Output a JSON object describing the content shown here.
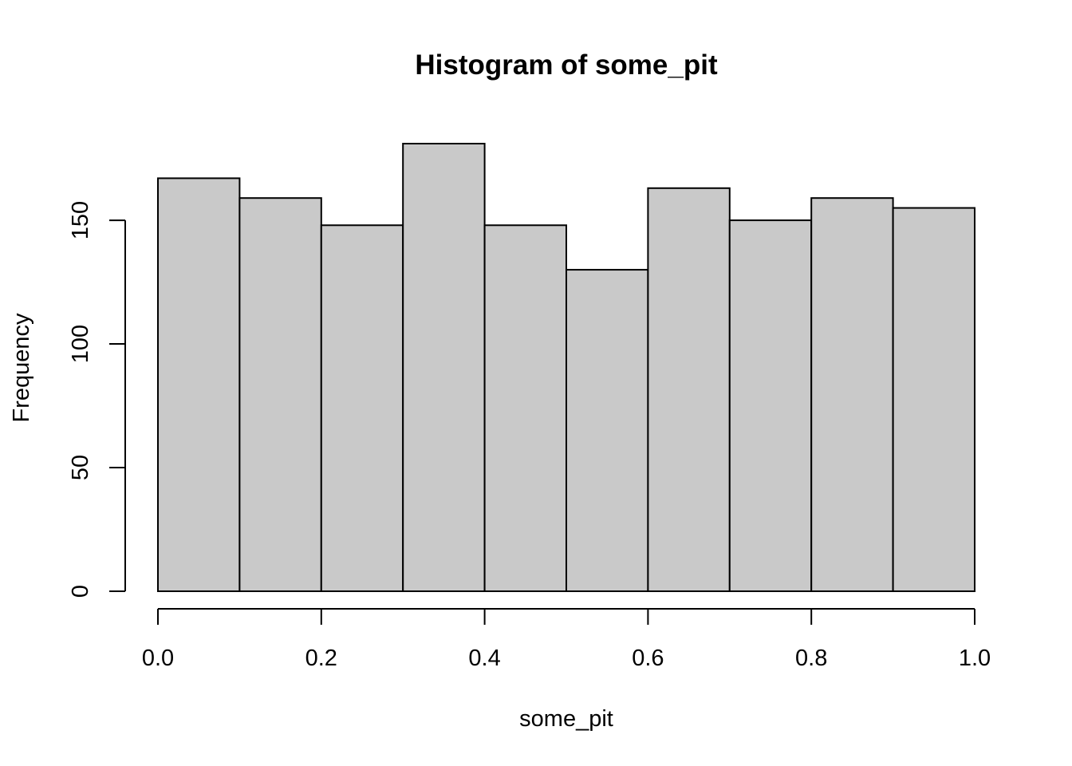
{
  "chart_data": {
    "type": "bar",
    "title": "Histogram of some_pit",
    "xlabel": "some_pit",
    "ylabel": "Frequency",
    "bins": [
      {
        "start": 0.0,
        "end": 0.1,
        "count": 167
      },
      {
        "start": 0.1,
        "end": 0.2,
        "count": 159
      },
      {
        "start": 0.2,
        "end": 0.3,
        "count": 148
      },
      {
        "start": 0.3,
        "end": 0.4,
        "count": 181
      },
      {
        "start": 0.4,
        "end": 0.5,
        "count": 148
      },
      {
        "start": 0.5,
        "end": 0.6,
        "count": 130
      },
      {
        "start": 0.6,
        "end": 0.7,
        "count": 163
      },
      {
        "start": 0.7,
        "end": 0.8,
        "count": 150
      },
      {
        "start": 0.8,
        "end": 0.9,
        "count": 159
      },
      {
        "start": 0.9,
        "end": 1.0,
        "count": 155
      }
    ],
    "xlim": [
      0,
      1
    ],
    "ylim": [
      0,
      181
    ],
    "x_ticks": [
      0.0,
      0.2,
      0.4,
      0.6,
      0.8,
      1.0
    ],
    "x_tick_labels": [
      "0.0",
      "0.2",
      "0.4",
      "0.6",
      "0.8",
      "1.0"
    ],
    "y_ticks": [
      0,
      50,
      100,
      150
    ],
    "y_tick_labels": [
      "0",
      "50",
      "100",
      "150"
    ],
    "grid": false,
    "colors": {
      "bar_fill": "#c9c9c9",
      "bar_stroke": "#000000"
    }
  }
}
